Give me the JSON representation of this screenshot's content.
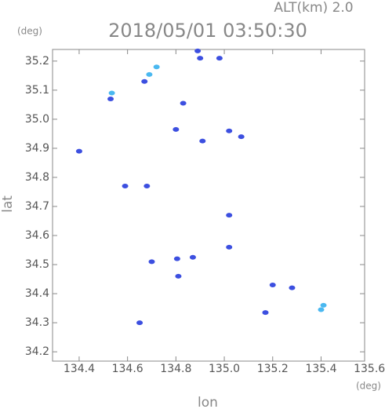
{
  "chart_data": {
    "type": "scatter",
    "title": "2018/05/01 03:50:30",
    "subtitle": "ALT(km) 2.0",
    "x_label": "lon",
    "y_label": "lat",
    "x_unit": "(deg)",
    "y_unit": "(deg)",
    "xlim": [
      134.29,
      135.58
    ],
    "ylim": [
      34.168,
      35.24
    ],
    "xticks": [
      134.4,
      134.6,
      134.8,
      {
        "value": 135,
        "label": "135.0"
      },
      135.2,
      135.4,
      135.6
    ],
    "yticks": [
      35.2,
      35.1,
      {
        "value": 35,
        "label": "35.0"
      },
      34.9,
      34.8,
      34.7,
      34.6,
      34.5,
      34.4,
      34.3,
      34.2
    ],
    "series": [
      {
        "color": "#3c4fe0",
        "x": [
          134.89,
          134.9,
          134.98,
          134.83,
          134.4,
          134.59,
          134.68,
          134.805,
          134.81,
          134.87,
          134.7,
          135.02,
          135.2,
          135.28,
          135.17,
          134.65,
          135.02,
          135.02,
          135.07,
          134.8,
          134.91,
          134.53,
          134.67
        ],
        "y": [
          35.235,
          35.21,
          35.21,
          35.055,
          34.89,
          34.77,
          34.77,
          34.52,
          34.46,
          34.525,
          34.51,
          34.67,
          34.43,
          34.42,
          34.335,
          34.3,
          34.56,
          34.96,
          34.94,
          34.965,
          34.925,
          35.07,
          35.13
        ]
      },
      {
        "color": "#4ab8f0",
        "x": [
          134.535,
          134.69,
          134.72,
          135.41,
          135.4
        ],
        "y": [
          35.09,
          35.154,
          35.18,
          34.36,
          34.345
        ]
      }
    ]
  }
}
